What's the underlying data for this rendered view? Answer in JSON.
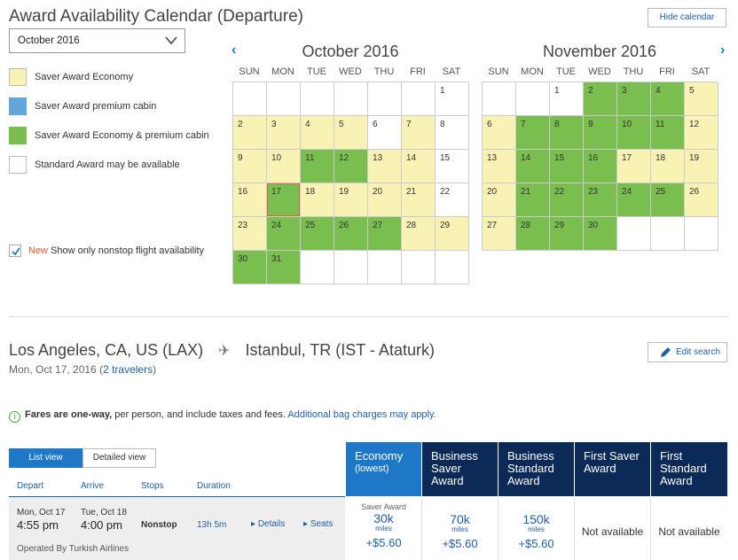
{
  "page": {
    "title": "Award Availability Calendar (Departure)",
    "hide_calendar": "Hide calendar",
    "month_select": "October 2016"
  },
  "legend": [
    {
      "label": "Saver Award Economy",
      "color": "#f8f3b5"
    },
    {
      "label": "Saver Award premium cabin",
      "color": "#62a6dc"
    },
    {
      "label": "Saver Award Economy & premium cabin",
      "color": "#79be4e"
    },
    {
      "label": "Standard Award may be available",
      "color": "#ffffff"
    }
  ],
  "nonstop": {
    "new": "New",
    "label": "Show only nonstop flight availability",
    "checked": true
  },
  "days_of_week": [
    "SUN",
    "MON",
    "TUE",
    "WED",
    "THU",
    "FRI",
    "SAT"
  ],
  "calendars": [
    {
      "title": "October 2016",
      "start_dow": 6,
      "num_days": 31,
      "selected": 17,
      "status": {
        "1": "w",
        "2": "y",
        "3": "y",
        "4": "y",
        "5": "y",
        "6": "w",
        "7": "y",
        "8": "w",
        "9": "y",
        "10": "y",
        "11": "g",
        "12": "g",
        "13": "y",
        "14": "y",
        "15": "w",
        "16": "y",
        "17": "g",
        "18": "y",
        "19": "y",
        "20": "y",
        "21": "y",
        "22": "w",
        "23": "y",
        "24": "g",
        "25": "g",
        "26": "g",
        "27": "g",
        "28": "y",
        "29": "y",
        "30": "g",
        "31": "g"
      }
    },
    {
      "title": "November 2016",
      "start_dow": 2,
      "num_days": 30,
      "selected": null,
      "status": {
        "1": "w",
        "2": "g",
        "3": "g",
        "4": "g",
        "5": "y",
        "6": "y",
        "7": "g",
        "8": "g",
        "9": "g",
        "10": "g",
        "11": "g",
        "12": "y",
        "13": "y",
        "14": "g",
        "15": "g",
        "16": "g",
        "17": "y",
        "18": "y",
        "19": "y",
        "20": "y",
        "21": "g",
        "22": "g",
        "23": "g",
        "24": "g",
        "25": "g",
        "26": "y",
        "27": "y",
        "28": "g",
        "29": "g",
        "30": "g"
      }
    }
  ],
  "search": {
    "origin": "Los Angeles, CA, US (LAX)",
    "destination": "Istanbul, TR (IST - Ataturk)",
    "date": "Mon, Oct 17, 2016",
    "travelers": "2 travelers",
    "edit_search": "Edit search"
  },
  "fares_note": {
    "bold": "Fares are one-way,",
    "rest": "per person, and include taxes and fees.",
    "link": "Additional bag charges may apply."
  },
  "view_tabs": {
    "list": "List view",
    "detailed": "Detailed view"
  },
  "columns": {
    "depart": "Depart",
    "arrive": "Arrive",
    "stops": "Stops",
    "duration": "Duration"
  },
  "fare_headers": [
    {
      "line1": "Economy",
      "line2": "(lowest)"
    },
    {
      "line1": "Business",
      "line2": "Saver",
      "line3": "Award"
    },
    {
      "line1": "Business",
      "line2": "Standard",
      "line3": "Award"
    },
    {
      "line1": "First Saver",
      "line2": "Award"
    },
    {
      "line1": "First",
      "line2": "Standard",
      "line3": "Award"
    }
  ],
  "flight": {
    "depart_date": "Mon, Oct 17",
    "depart_time": "4:55 pm",
    "arrive_date": "Tue, Oct 18",
    "arrive_time": "4:00 pm",
    "stops": "Nonstop",
    "duration": "13h 5m",
    "details": "Details",
    "seats": "Seats",
    "operated_by": "Operated By Turkish Airlines",
    "fares": [
      {
        "tag": "Saver Award",
        "miles": "30k",
        "miles_label": "miles",
        "tax": "+$5.60"
      },
      {
        "tag": "",
        "miles": "70k",
        "miles_label": "miles",
        "tax": "+$5.60"
      },
      {
        "tag": "",
        "miles": "150k",
        "miles_label": "miles",
        "tax": "+$5.60"
      },
      {
        "na": "Not available"
      },
      {
        "na": "Not available"
      }
    ]
  }
}
